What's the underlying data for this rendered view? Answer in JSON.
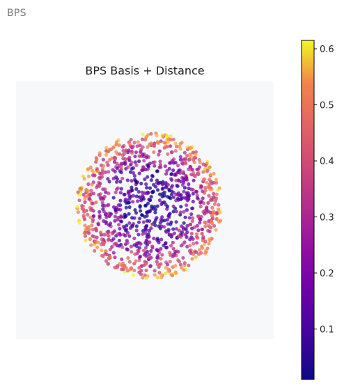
{
  "panel": {
    "label": "BPS"
  },
  "chart_data": {
    "type": "scatter",
    "title": "BPS Basis + Distance",
    "xlabel": "",
    "ylabel": "",
    "axes_visible": false,
    "plot_background": "#f7f8fa",
    "colormap": "plasma",
    "point_alpha": 0.75,
    "colorbar": {
      "vmin": 0.01,
      "vmax": 0.615,
      "ticks": [
        0.1,
        0.2,
        0.3,
        0.4,
        0.5,
        0.6
      ],
      "tick_labels": [
        "0.1",
        "0.2",
        "0.3",
        "0.4",
        "0.5",
        "0.6"
      ]
    },
    "point_cloud": {
      "count": 1100,
      "distribution": "uniform in disc, radius 1, centered at origin",
      "color_rule": "distance grows toward the rim; low values (dark purple) dominate the interior, high values (orange/yellow) on the outer ring",
      "x_range": [
        -1,
        1
      ],
      "y_range": [
        -1,
        1
      ]
    }
  }
}
